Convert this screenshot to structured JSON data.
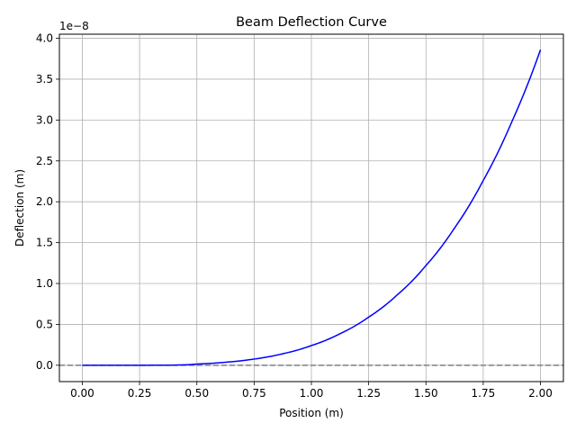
{
  "chart_data": {
    "type": "line",
    "title": "Beam Deflection Curve",
    "xlabel": "Position (m)",
    "ylabel": "Deflection (m)",
    "y_offset_label": "1e−8",
    "y_scale_factor": 1e-08,
    "xlim": [
      -0.1,
      2.1
    ],
    "ylim": [
      -2e-09,
      4.05e-08
    ],
    "x_ticks": [
      0.0,
      0.25,
      0.5,
      0.75,
      1.0,
      1.25,
      1.5,
      1.75,
      2.0
    ],
    "x_tick_labels": [
      "0.00",
      "0.25",
      "0.50",
      "0.75",
      "1.00",
      "1.25",
      "1.50",
      "1.75",
      "2.00"
    ],
    "y_ticks": [
      0.0,
      5e-09,
      1e-08,
      1.5e-08,
      2e-08,
      2.5e-08,
      3e-08,
      3.5e-08,
      4e-08
    ],
    "y_tick_labels": [
      "0.0",
      "0.5",
      "1.0",
      "1.5",
      "2.0",
      "2.5",
      "3.0",
      "3.5",
      "4.0"
    ],
    "grid": true,
    "series": [
      {
        "color": "#0000ff",
        "x": [
          0.0,
          0.25,
          0.5,
          0.625,
          0.75,
          0.875,
          1.0,
          1.125,
          1.25,
          1.375,
          1.5,
          1.625,
          1.75,
          1.875,
          2.0
        ],
        "y": [
          0.0,
          1e-12,
          1.5e-10,
          3.7e-10,
          7.6e-10,
          1.41e-09,
          2.41e-09,
          3.86e-09,
          5.89e-09,
          8.62e-09,
          1.22e-08,
          1.68e-08,
          2.26e-08,
          2.98e-08,
          3.86e-08
        ]
      }
    ],
    "reference_line": {
      "y": 0.0,
      "style": "dashed",
      "color": "#808080"
    }
  }
}
